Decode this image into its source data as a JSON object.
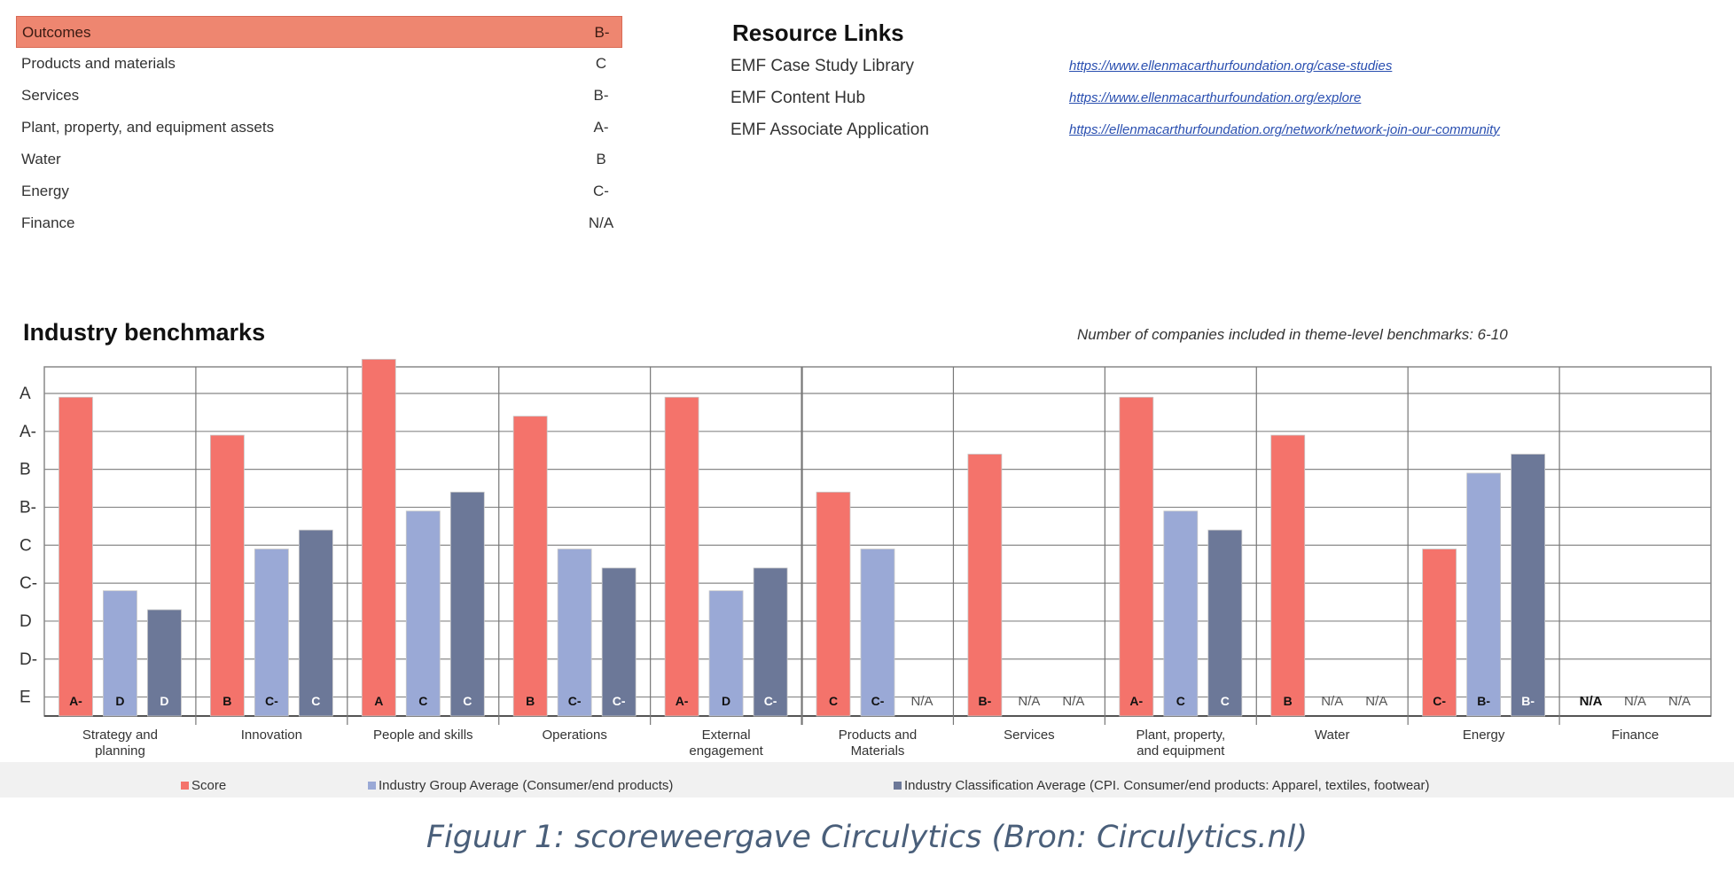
{
  "outcomes": {
    "rows": [
      {
        "label": "Outcomes",
        "grade": "B-"
      },
      {
        "label": "Products and materials",
        "grade": "C"
      },
      {
        "label": "Services",
        "grade": "B-"
      },
      {
        "label": "Plant, property, and equipment assets",
        "grade": "A-"
      },
      {
        "label": "Water",
        "grade": "B"
      },
      {
        "label": "Energy",
        "grade": "C-"
      },
      {
        "label": "Finance",
        "grade": "N/A"
      }
    ]
  },
  "resources": {
    "title": "Resource Links",
    "items": [
      {
        "label": "EMF Case Study Library",
        "url": "https://www.ellenmacarthurfoundation.org/case-studies"
      },
      {
        "label": "EMF Content Hub",
        "url": "https://www.ellenmacarthurfoundation.org/explore"
      },
      {
        "label": "EMF Associate Application",
        "url": "https://ellenmacarthurfoundation.org/network/network-join-our-community"
      }
    ]
  },
  "benchmarks": {
    "title": "Industry benchmarks",
    "note": "Number of companies included in theme-level benchmarks:  6-10"
  },
  "chart_data": {
    "type": "bar",
    "y_scale": [
      "E",
      "D-",
      "D",
      "C-",
      "C",
      "B-",
      "B",
      "A-",
      "A"
    ],
    "categories": [
      "Strategy and planning",
      "Innovation",
      "People and skills",
      "Operations",
      "External engagement",
      "Products and Materials",
      "Services",
      "Plant, property, and equipment assets",
      "Water",
      "Energy",
      "Finance"
    ],
    "series": [
      {
        "name": "Score",
        "values": [
          "A-",
          "B",
          "A",
          "B",
          "A-",
          "C",
          "B-",
          "A-",
          "B",
          "C-",
          "N/A"
        ]
      },
      {
        "name": "Industry Group Average  (Consumer/end products)",
        "values": [
          "D",
          "C-",
          "C",
          "C-",
          "D",
          "C-",
          "N/A",
          "C",
          "N/A",
          "B-",
          "N/A"
        ]
      },
      {
        "name": "Industry Classification Average (CPI. Consumer/end products: Apparel, textiles, footwear)",
        "values": [
          "D",
          "C",
          "C",
          "C-",
          "C-",
          "N/A",
          "N/A",
          "C",
          "N/A",
          "B-",
          "N/A"
        ]
      }
    ],
    "bar_levels": [
      [
        7.9,
        2.8,
        2.3
      ],
      [
        6.9,
        3.9,
        4.4
      ],
      [
        8.9,
        4.9,
        5.4
      ],
      [
        7.4,
        3.9,
        3.4
      ],
      [
        7.9,
        2.8,
        3.4
      ],
      [
        5.4,
        3.9,
        null
      ],
      [
        6.4,
        null,
        null
      ],
      [
        7.9,
        4.9,
        4.4
      ],
      [
        6.9,
        null,
        null
      ],
      [
        3.9,
        5.9,
        6.4
      ],
      [
        null,
        null,
        null
      ]
    ],
    "colors": [
      "#f4736b",
      "#9aa9d6",
      "#6c7898"
    ]
  },
  "caption": "Figuur 1: scoreweergave Circulytics (Bron: Circulytics.nl)"
}
